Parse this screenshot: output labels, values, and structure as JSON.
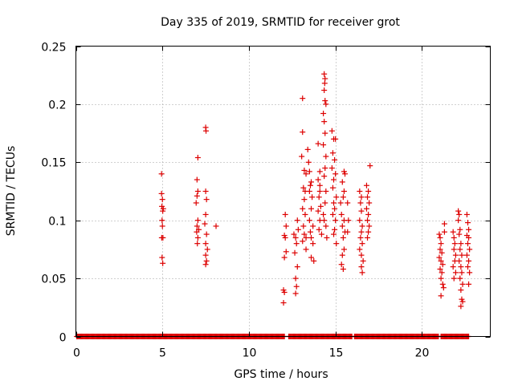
{
  "chart_data": {
    "type": "scatter",
    "title": "Day 335 of 2019, SRMTID for receiver grot",
    "xlabel": "GPS time / hours",
    "ylabel": "SRMTID / TECUs",
    "xlim": [
      0,
      24
    ],
    "ylim": [
      0,
      0.25
    ],
    "xticks": [
      0,
      5,
      10,
      15,
      20
    ],
    "xtick_labels": [
      "0",
      "5",
      "10",
      "15",
      "20"
    ],
    "yticks": [
      0,
      0.05,
      0.1,
      0.15,
      0.2,
      0.25
    ],
    "ytick_labels": [
      "0",
      "0.05",
      "0.1",
      "0.15",
      "0.2",
      "0.25"
    ],
    "grid": true,
    "legend": "none",
    "marker": "plus",
    "color": "#dd0000",
    "series": [
      {
        "name": "SRMTID",
        "points": [
          [
            4.95,
            0.14
          ],
          [
            4.95,
            0.123
          ],
          [
            5.0,
            0.118
          ],
          [
            4.97,
            0.112
          ],
          [
            5.02,
            0.108
          ],
          [
            4.98,
            0.1
          ],
          [
            5.0,
            0.095
          ],
          [
            4.96,
            0.085
          ],
          [
            5.03,
            0.085
          ],
          [
            4.98,
            0.068
          ],
          [
            5.02,
            0.063
          ],
          [
            5.05,
            0.11
          ],
          [
            7.05,
            0.154
          ],
          [
            7.0,
            0.135
          ],
          [
            7.05,
            0.125
          ],
          [
            7.0,
            0.121
          ],
          [
            6.95,
            0.115
          ],
          [
            7.05,
            0.1
          ],
          [
            7.0,
            0.095
          ],
          [
            6.98,
            0.09
          ],
          [
            7.05,
            0.085
          ],
          [
            7.02,
            0.08
          ],
          [
            7.1,
            0.092
          ],
          [
            7.5,
            0.18
          ],
          [
            7.52,
            0.177
          ],
          [
            7.5,
            0.125
          ],
          [
            7.55,
            0.118
          ],
          [
            7.5,
            0.105
          ],
          [
            7.45,
            0.097
          ],
          [
            7.55,
            0.088
          ],
          [
            7.5,
            0.08
          ],
          [
            7.6,
            0.075
          ],
          [
            7.5,
            0.07
          ],
          [
            7.55,
            0.065
          ],
          [
            7.5,
            0.062
          ],
          [
            8.1,
            0.095
          ],
          [
            12.1,
            0.105
          ],
          [
            12.15,
            0.095
          ],
          [
            12.05,
            0.087
          ],
          [
            12.1,
            0.085
          ],
          [
            12.15,
            0.073
          ],
          [
            12.05,
            0.068
          ],
          [
            12.0,
            0.04
          ],
          [
            12.05,
            0.038
          ],
          [
            12.0,
            0.029
          ],
          [
            12.6,
            0.088
          ],
          [
            12.7,
            0.085
          ],
          [
            12.75,
            0.08
          ],
          [
            12.65,
            0.072
          ],
          [
            12.8,
            0.06
          ],
          [
            12.7,
            0.05
          ],
          [
            12.75,
            0.043
          ],
          [
            12.7,
            0.037
          ],
          [
            12.8,
            0.1
          ],
          [
            12.85,
            0.092
          ],
          [
            13.1,
            0.205
          ],
          [
            13.1,
            0.176
          ],
          [
            13.05,
            0.155
          ],
          [
            13.2,
            0.143
          ],
          [
            13.3,
            0.14
          ],
          [
            13.15,
            0.128
          ],
          [
            13.25,
            0.125
          ],
          [
            13.2,
            0.118
          ],
          [
            13.1,
            0.11
          ],
          [
            13.25,
            0.105
          ],
          [
            13.15,
            0.095
          ],
          [
            13.2,
            0.088
          ],
          [
            13.3,
            0.085
          ],
          [
            13.1,
            0.082
          ],
          [
            13.3,
            0.075
          ],
          [
            13.4,
            0.161
          ],
          [
            13.45,
            0.15
          ],
          [
            13.5,
            0.142
          ],
          [
            13.6,
            0.133
          ],
          [
            13.55,
            0.13
          ],
          [
            13.5,
            0.125
          ],
          [
            13.65,
            0.12
          ],
          [
            13.6,
            0.11
          ],
          [
            13.5,
            0.1
          ],
          [
            13.7,
            0.095
          ],
          [
            13.55,
            0.09
          ],
          [
            13.6,
            0.085
          ],
          [
            13.7,
            0.08
          ],
          [
            13.6,
            0.068
          ],
          [
            13.75,
            0.065
          ],
          [
            14.0,
            0.166
          ],
          [
            14.1,
            0.142
          ],
          [
            14.0,
            0.135
          ],
          [
            14.1,
            0.13
          ],
          [
            14.05,
            0.12
          ],
          [
            14.15,
            0.112
          ],
          [
            14.0,
            0.108
          ],
          [
            14.1,
            0.1
          ],
          [
            14.05,
            0.092
          ],
          [
            14.2,
            0.088
          ],
          [
            14.1,
            0.125
          ],
          [
            14.35,
            0.226
          ],
          [
            14.4,
            0.222
          ],
          [
            14.38,
            0.218
          ],
          [
            14.35,
            0.212
          ],
          [
            14.4,
            0.203
          ],
          [
            14.45,
            0.2
          ],
          [
            14.3,
            0.192
          ],
          [
            14.35,
            0.185
          ],
          [
            14.4,
            0.175
          ],
          [
            14.3,
            0.165
          ],
          [
            14.45,
            0.155
          ],
          [
            14.4,
            0.145
          ],
          [
            14.35,
            0.138
          ],
          [
            14.45,
            0.125
          ],
          [
            14.4,
            0.115
          ],
          [
            14.3,
            0.105
          ],
          [
            14.35,
            0.1
          ],
          [
            14.45,
            0.095
          ],
          [
            14.5,
            0.085
          ],
          [
            14.8,
            0.177
          ],
          [
            14.9,
            0.17
          ],
          [
            15.0,
            0.17
          ],
          [
            14.85,
            0.158
          ],
          [
            14.95,
            0.152
          ],
          [
            14.8,
            0.145
          ],
          [
            15.0,
            0.14
          ],
          [
            14.9,
            0.135
          ],
          [
            14.85,
            0.128
          ],
          [
            15.05,
            0.12
          ],
          [
            14.9,
            0.115
          ],
          [
            14.95,
            0.11
          ],
          [
            14.85,
            0.105
          ],
          [
            15.0,
            0.1
          ],
          [
            14.95,
            0.092
          ],
          [
            14.9,
            0.088
          ],
          [
            15.05,
            0.08
          ],
          [
            15.5,
            0.142
          ],
          [
            15.55,
            0.14
          ],
          [
            15.4,
            0.133
          ],
          [
            15.5,
            0.125
          ],
          [
            15.45,
            0.12
          ],
          [
            15.3,
            0.115
          ],
          [
            15.35,
            0.105
          ],
          [
            15.5,
            0.1
          ],
          [
            15.4,
            0.095
          ],
          [
            15.55,
            0.09
          ],
          [
            15.45,
            0.085
          ],
          [
            15.5,
            0.075
          ],
          [
            15.4,
            0.07
          ],
          [
            15.35,
            0.062
          ],
          [
            15.45,
            0.058
          ],
          [
            15.7,
            0.115
          ],
          [
            15.75,
            0.1
          ],
          [
            15.7,
            0.09
          ],
          [
            16.4,
            0.125
          ],
          [
            16.5,
            0.12
          ],
          [
            16.45,
            0.115
          ],
          [
            16.5,
            0.108
          ],
          [
            16.4,
            0.1
          ],
          [
            16.55,
            0.095
          ],
          [
            16.5,
            0.09
          ],
          [
            16.45,
            0.085
          ],
          [
            16.55,
            0.08
          ],
          [
            16.4,
            0.075
          ],
          [
            16.5,
            0.07
          ],
          [
            16.6,
            0.065
          ],
          [
            16.5,
            0.06
          ],
          [
            16.55,
            0.055
          ],
          [
            16.8,
            0.13
          ],
          [
            16.9,
            0.125
          ],
          [
            16.85,
            0.12
          ],
          [
            16.95,
            0.115
          ],
          [
            16.8,
            0.11
          ],
          [
            16.9,
            0.105
          ],
          [
            16.85,
            0.1
          ],
          [
            16.95,
            0.095
          ],
          [
            16.9,
            0.09
          ],
          [
            16.85,
            0.085
          ],
          [
            17.0,
            0.147
          ],
          [
            21.0,
            0.088
          ],
          [
            21.05,
            0.085
          ],
          [
            21.1,
            0.08
          ],
          [
            21.05,
            0.075
          ],
          [
            21.15,
            0.072
          ],
          [
            21.0,
            0.068
          ],
          [
            21.1,
            0.065
          ],
          [
            21.2,
            0.062
          ],
          [
            21.05,
            0.058
          ],
          [
            21.15,
            0.055
          ],
          [
            21.1,
            0.05
          ],
          [
            21.2,
            0.045
          ],
          [
            21.25,
            0.042
          ],
          [
            21.1,
            0.035
          ],
          [
            21.3,
            0.097
          ],
          [
            21.3,
            0.09
          ],
          [
            21.8,
            0.09
          ],
          [
            21.85,
            0.085
          ],
          [
            21.9,
            0.08
          ],
          [
            21.85,
            0.075
          ],
          [
            21.95,
            0.07
          ],
          [
            21.9,
            0.065
          ],
          [
            21.8,
            0.06
          ],
          [
            21.95,
            0.055
          ],
          [
            21.85,
            0.05
          ],
          [
            22.1,
            0.108
          ],
          [
            22.15,
            0.105
          ],
          [
            22.1,
            0.1
          ],
          [
            22.2,
            0.092
          ],
          [
            22.15,
            0.088
          ],
          [
            22.25,
            0.08
          ],
          [
            22.2,
            0.075
          ],
          [
            22.3,
            0.07
          ],
          [
            22.15,
            0.065
          ],
          [
            22.25,
            0.06
          ],
          [
            22.3,
            0.055
          ],
          [
            22.2,
            0.05
          ],
          [
            22.35,
            0.045
          ],
          [
            22.25,
            0.04
          ],
          [
            22.3,
            0.032
          ],
          [
            22.25,
            0.026
          ],
          [
            22.35,
            0.03
          ],
          [
            22.6,
            0.105
          ],
          [
            22.65,
            0.098
          ],
          [
            22.7,
            0.092
          ],
          [
            22.6,
            0.087
          ],
          [
            22.7,
            0.085
          ],
          [
            22.65,
            0.08
          ],
          [
            22.75,
            0.075
          ],
          [
            22.6,
            0.07
          ],
          [
            22.7,
            0.065
          ],
          [
            22.65,
            0.06
          ],
          [
            22.75,
            0.055
          ],
          [
            22.7,
            0.045
          ]
        ]
      }
    ],
    "baseline": {
      "y": 0,
      "x_start": 0.05,
      "x_end": 22.7,
      "step": 0.05,
      "gaps": [
        [
          12.1,
          12.3
        ],
        [
          16.0,
          16.1
        ],
        [
          21.0,
          21.1
        ]
      ]
    }
  }
}
